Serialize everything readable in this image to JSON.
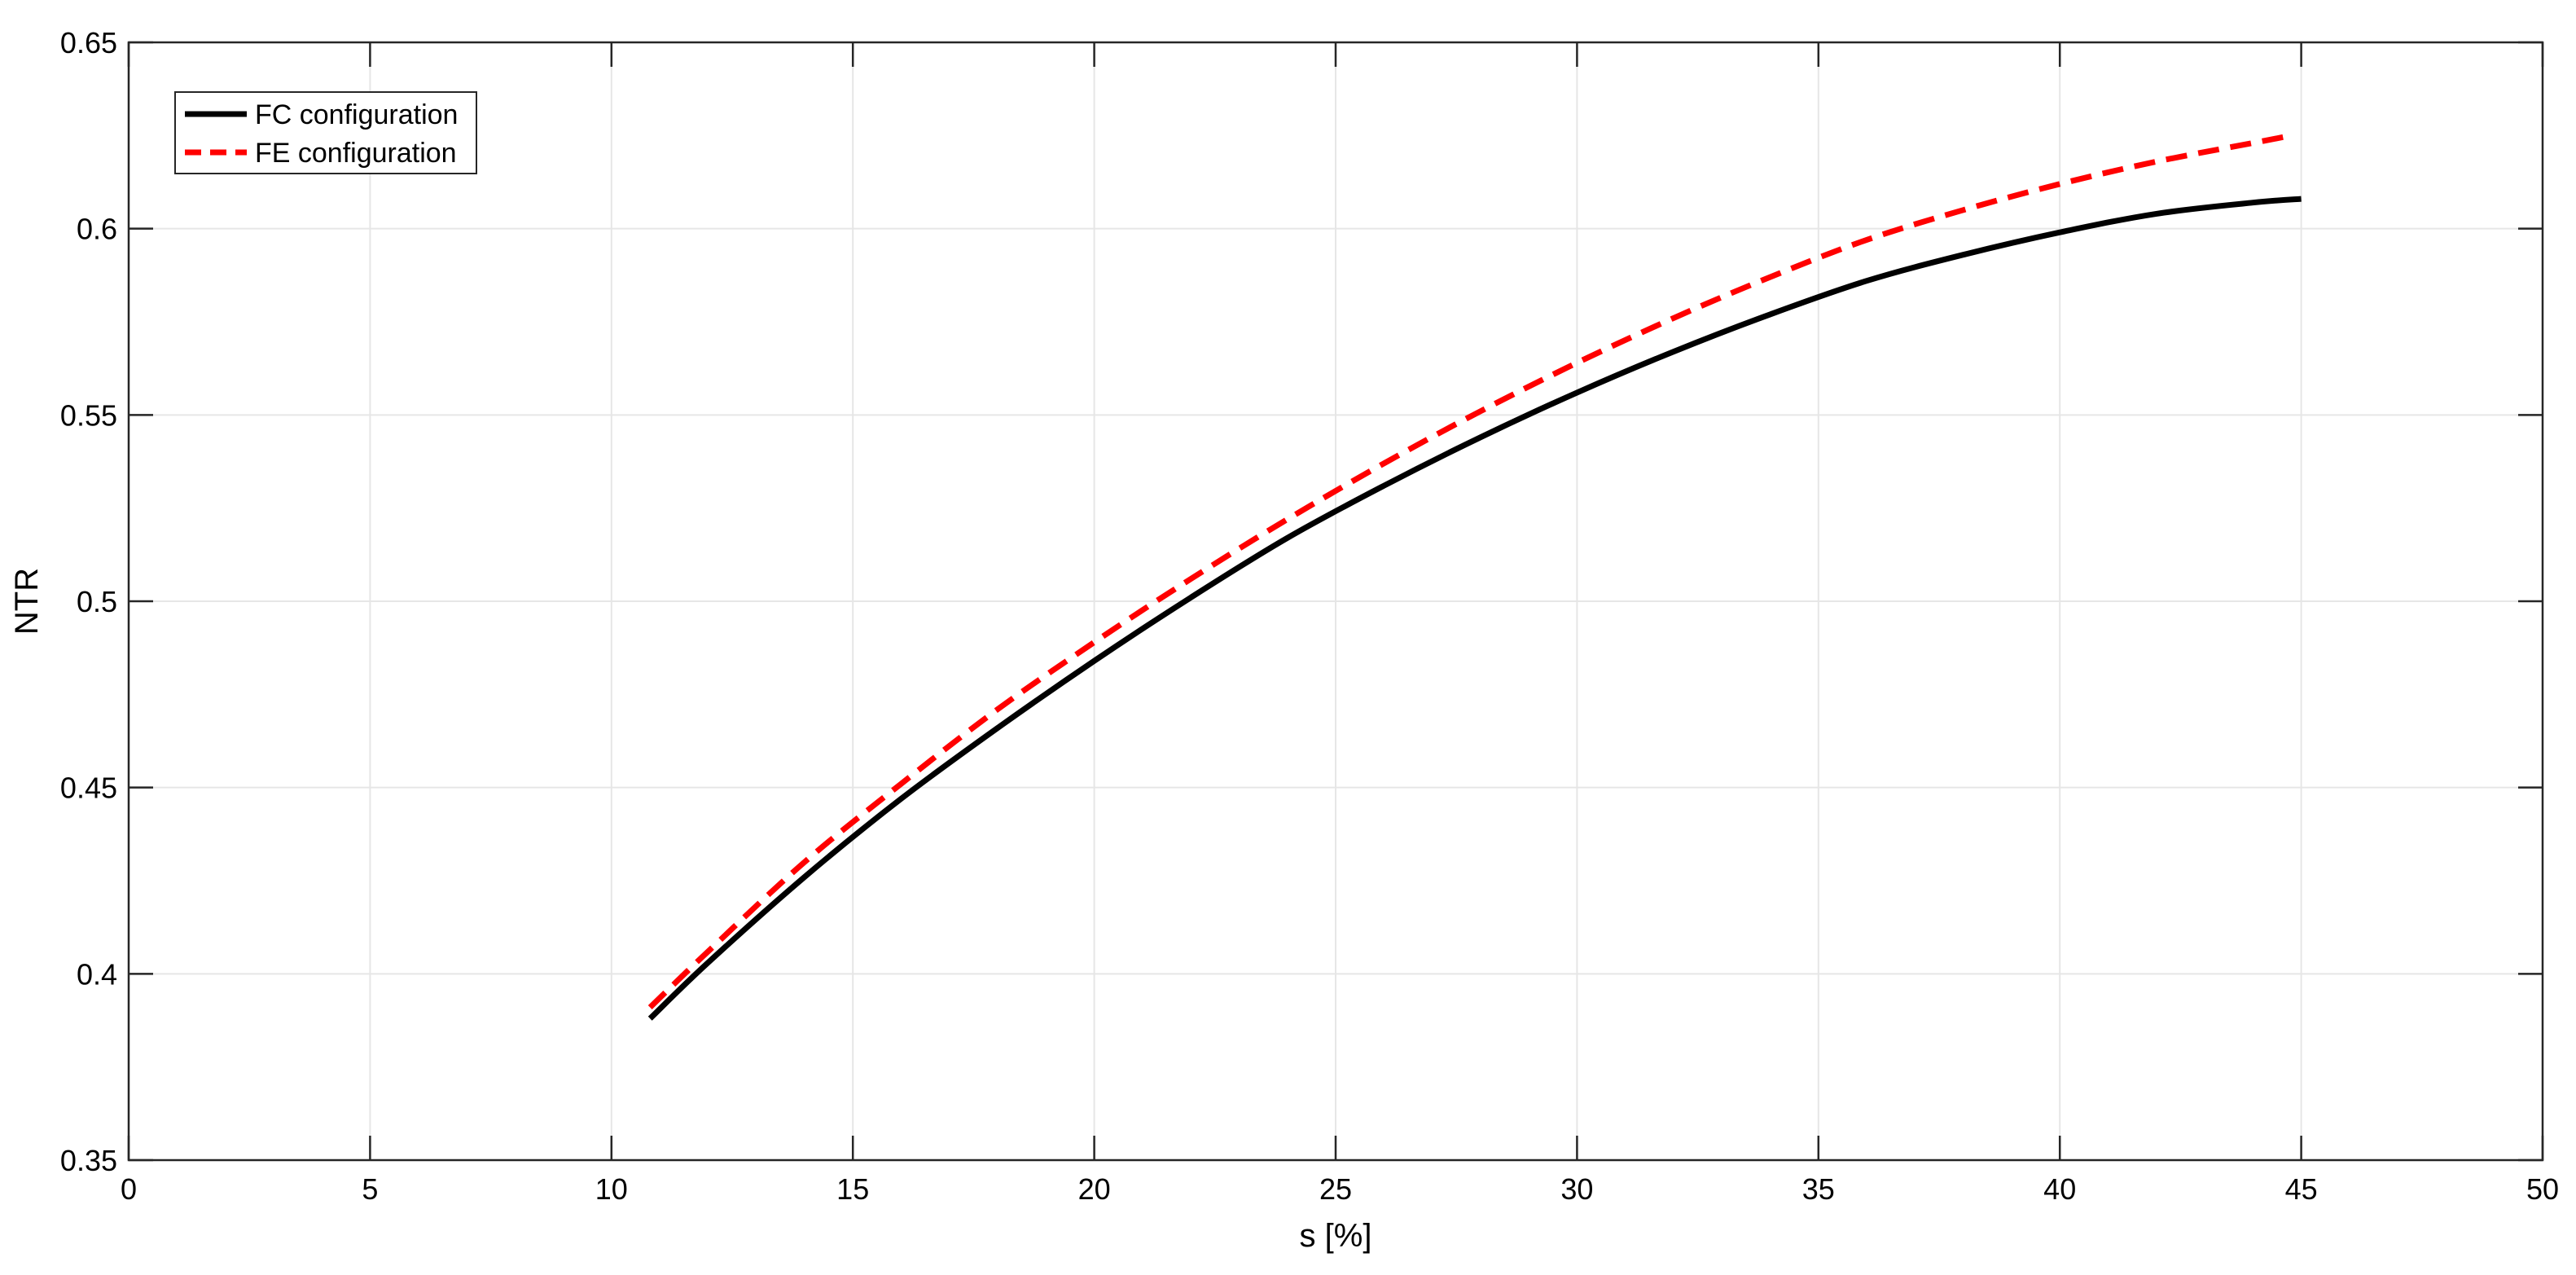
{
  "chart_data": {
    "type": "line",
    "title": "",
    "xlabel": "s [%]",
    "ylabel": "NTR",
    "xlim": [
      0,
      50
    ],
    "ylim": [
      0.35,
      0.65
    ],
    "x_ticks": [
      0,
      5,
      10,
      15,
      20,
      25,
      30,
      35,
      40,
      45,
      50
    ],
    "y_ticks": [
      0.35,
      0.4,
      0.45,
      0.5,
      0.55,
      0.6,
      0.65
    ],
    "x_tick_labels": [
      "0",
      "5",
      "10",
      "15",
      "20",
      "25",
      "30",
      "35",
      "40",
      "45",
      "50"
    ],
    "y_tick_labels": [
      "0.35",
      "0.4",
      "0.45",
      "0.5",
      "0.55",
      "0.6",
      "0.65"
    ],
    "grid": true,
    "legend_position": "top-left",
    "series": [
      {
        "name": "FC configuration",
        "color": "#000000",
        "line_style": "solid",
        "x": [
          10.8,
          12,
          14,
          16,
          18,
          20,
          22,
          24,
          26,
          28,
          30,
          32,
          34,
          36,
          38,
          40,
          42,
          44,
          45
        ],
        "y": [
          0.388,
          0.403,
          0.426,
          0.447,
          0.466,
          0.484,
          0.501,
          0.517,
          0.531,
          0.544,
          0.556,
          0.567,
          0.577,
          0.586,
          0.593,
          0.599,
          0.604,
          0.607,
          0.608
        ]
      },
      {
        "name": "FE configuration",
        "color": "#ff0000",
        "line_style": "dashed",
        "x": [
          10.8,
          12,
          14,
          16,
          18,
          20,
          22,
          24,
          26,
          28,
          30,
          32,
          34,
          36,
          38,
          40,
          42,
          44,
          44.8
        ],
        "y": [
          0.391,
          0.406,
          0.43,
          0.451,
          0.471,
          0.489,
          0.506,
          0.522,
          0.537,
          0.551,
          0.564,
          0.576,
          0.587,
          0.597,
          0.605,
          0.612,
          0.618,
          0.623,
          0.625
        ]
      }
    ]
  }
}
